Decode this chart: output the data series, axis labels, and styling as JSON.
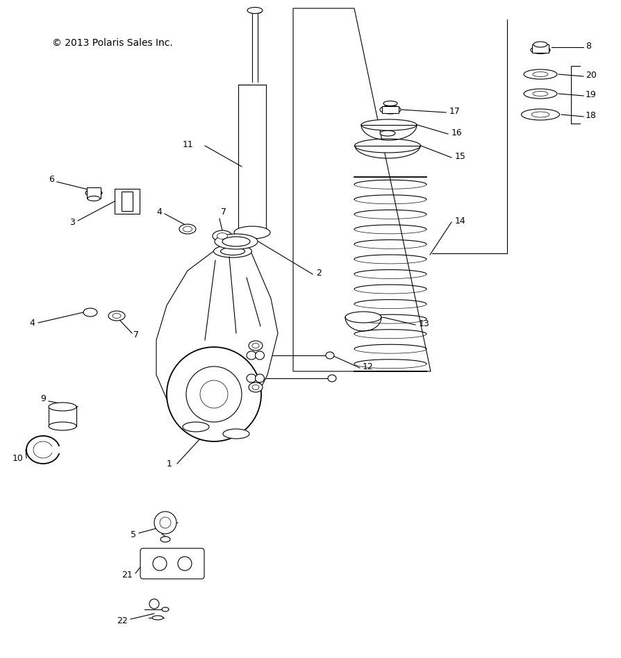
{
  "title": "© 2013 Polaris Sales Inc.",
  "bg_color": "#ffffff",
  "line_color": "#000000",
  "lw": 0.8,
  "fontsize": 9
}
